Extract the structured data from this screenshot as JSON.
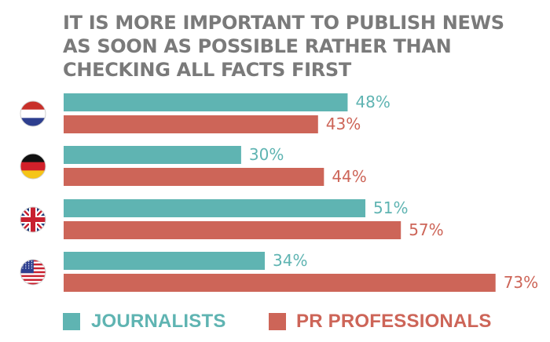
{
  "title_lines": [
    "IT IS MORE IMPORTANT TO PUBLISH NEWS",
    "AS SOON AS POSSIBLE RATHER THAN",
    "CHECKING ALL FACTS FIRST"
  ],
  "colors": {
    "journalists": "#5fb4b2",
    "pr_professionals": "#cd6558",
    "title": "#7a7a7a"
  },
  "chart_data": {
    "type": "bar",
    "orientation": "horizontal",
    "categories": [
      "netherlands-flag",
      "germany-flag",
      "uk-flag",
      "usa-flag"
    ],
    "series": [
      {
        "name": "JOURNALISTS",
        "values": [
          48,
          30,
          51,
          34
        ]
      },
      {
        "name": "PR PROFESSIONALS",
        "values": [
          43,
          44,
          57,
          73
        ]
      }
    ],
    "data_labels": [
      [
        "48%",
        "43%"
      ],
      [
        "30%",
        "44%"
      ],
      [
        "51%",
        "57%"
      ],
      [
        "34%",
        "73%"
      ]
    ],
    "xlim": [
      0,
      100
    ],
    "grid": false,
    "legend": "bottom"
  },
  "legend": {
    "journalists": "JOURNALISTS",
    "pr_professionals": "PR PROFESSIONALS"
  }
}
